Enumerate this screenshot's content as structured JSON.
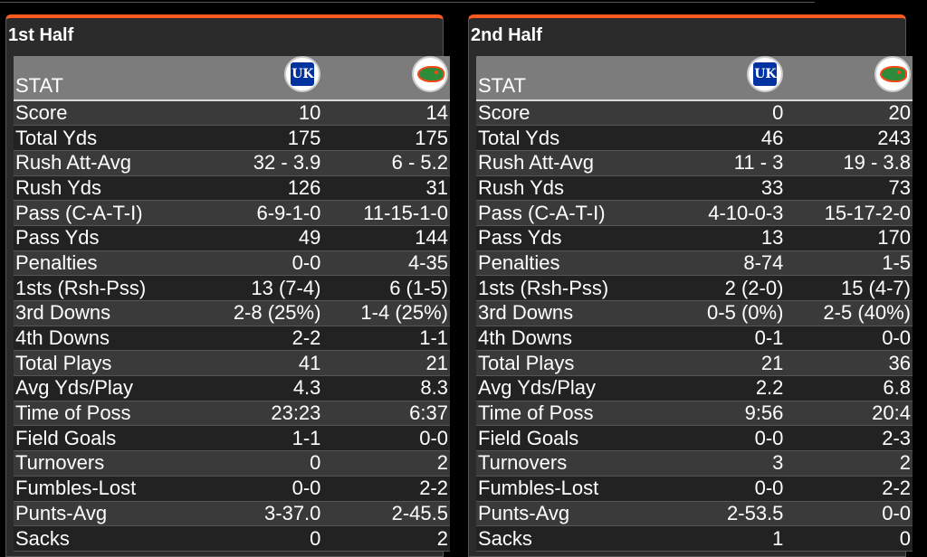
{
  "left": {
    "title": "1st Half",
    "header": {
      "stat": "STAT",
      "team_a_logo": "kentucky-logo",
      "team_b_logo": "florida-logo"
    },
    "rows": [
      {
        "stat": "Score",
        "a": "10",
        "b": "14"
      },
      {
        "stat": "Total Yds",
        "a": "175",
        "b": "175"
      },
      {
        "stat": "Rush Att-Avg",
        "a": "32 - 3.9",
        "b": "6 - 5.2"
      },
      {
        "stat": "Rush Yds",
        "a": "126",
        "b": "31"
      },
      {
        "stat": "Pass (C-A-T-I)",
        "a": "6-9-1-0",
        "b": "11-15-1-0"
      },
      {
        "stat": "Pass Yds",
        "a": "49",
        "b": "144"
      },
      {
        "stat": "Penalties",
        "a": "0-0",
        "b": "4-35"
      },
      {
        "stat": "1sts (Rsh-Pss)",
        "a": "13 (7-4)",
        "b": "6 (1-5)"
      },
      {
        "stat": "3rd Downs",
        "a": "2-8 (25%)",
        "b": "1-4 (25%)"
      },
      {
        "stat": "4th Downs",
        "a": "2-2",
        "b": "1-1"
      },
      {
        "stat": "Total Plays",
        "a": "41",
        "b": "21"
      },
      {
        "stat": "Avg Yds/Play",
        "a": "4.3",
        "b": "8.3"
      },
      {
        "stat": "Time of Poss",
        "a": "23:23",
        "b": "6:37"
      },
      {
        "stat": "Field Goals",
        "a": "1-1",
        "b": "0-0"
      },
      {
        "stat": "Turnovers",
        "a": "0",
        "b": "2"
      },
      {
        "stat": "Fumbles-Lost",
        "a": "0-0",
        "b": "2-2"
      },
      {
        "stat": "Punts-Avg",
        "a": "3-37.0",
        "b": "2-45.5"
      },
      {
        "stat": "Sacks",
        "a": "0",
        "b": "2"
      }
    ]
  },
  "right": {
    "title": "2nd Half",
    "header": {
      "stat": "STAT",
      "team_a_logo": "kentucky-logo",
      "team_b_logo": "florida-logo"
    },
    "rows": [
      {
        "stat": "Score",
        "a": "0",
        "b": "20"
      },
      {
        "stat": "Total Yds",
        "a": "46",
        "b": "243"
      },
      {
        "stat": "Rush Att-Avg",
        "a": "11 - 3",
        "b": "19 - 3.8"
      },
      {
        "stat": "Rush Yds",
        "a": "33",
        "b": "73"
      },
      {
        "stat": "Pass (C-A-T-I)",
        "a": "4-10-0-3",
        "b": "15-17-2-0"
      },
      {
        "stat": "Pass Yds",
        "a": "13",
        "b": "170"
      },
      {
        "stat": "Penalties",
        "a": "8-74",
        "b": "1-5"
      },
      {
        "stat": "1sts (Rsh-Pss)",
        "a": "2 (2-0)",
        "b": "15 (4-7)"
      },
      {
        "stat": "3rd Downs",
        "a": "0-5 (0%)",
        "b": "2-5 (40%)"
      },
      {
        "stat": "4th Downs",
        "a": "0-1",
        "b": "0-0"
      },
      {
        "stat": "Total Plays",
        "a": "21",
        "b": "36"
      },
      {
        "stat": "Avg Yds/Play",
        "a": "2.2",
        "b": "6.8"
      },
      {
        "stat": "Time of Poss",
        "a": "9:56",
        "b": "20:4"
      },
      {
        "stat": "Field Goals",
        "a": "0-0",
        "b": "2-3"
      },
      {
        "stat": "Turnovers",
        "a": "3",
        "b": "2"
      },
      {
        "stat": "Fumbles-Lost",
        "a": "0-0",
        "b": "2-2"
      },
      {
        "stat": "Punts-Avg",
        "a": "2-53.5",
        "b": "0-0"
      },
      {
        "stat": "Sacks",
        "a": "1",
        "b": "0"
      }
    ]
  },
  "colors": {
    "accent": "#ff5a1f",
    "panel": "#2b2b2b",
    "header": "#7c7c7c"
  }
}
